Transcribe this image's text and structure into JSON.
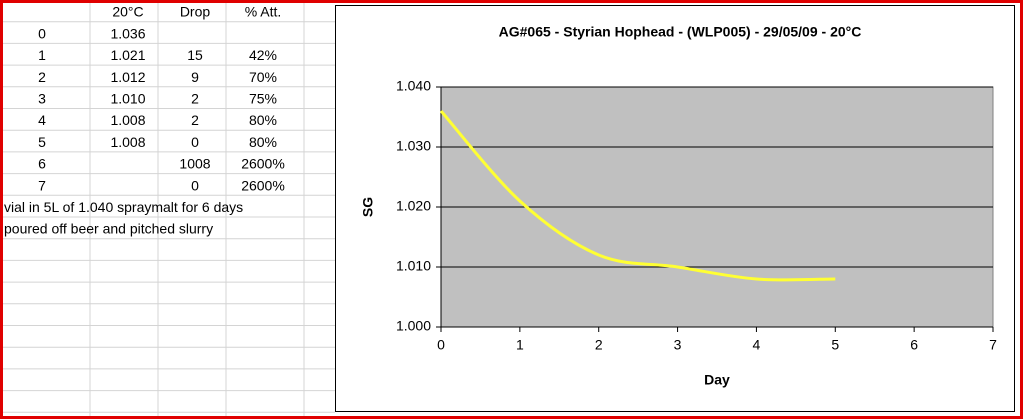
{
  "sheet": {
    "rows": [
      {
        "sg": "20°C",
        "drop": "Drop",
        "att": "% Att."
      },
      {
        "day": "0",
        "sg": "1.036"
      },
      {
        "day": "1",
        "sg": "1.021",
        "drop": "15",
        "att": "42%"
      },
      {
        "day": "2",
        "sg": "1.012",
        "drop": "9",
        "att": "70%"
      },
      {
        "day": "3",
        "sg": "1.010",
        "drop": "2",
        "att": "75%"
      },
      {
        "day": "4",
        "sg": "1.008",
        "drop": "2",
        "att": "80%"
      },
      {
        "day": "5",
        "sg": "1.008",
        "drop": "0",
        "att": "80%"
      },
      {
        "day": "6",
        "drop": "1008",
        "att": "2600%"
      },
      {
        "day": "7",
        "drop": "0",
        "att": "2600%"
      },
      {
        "note": "vial in 5L of 1.040 spraymalt for 6 days"
      },
      {
        "note": "poured off beer and pitched slurry"
      }
    ]
  },
  "chart_data": {
    "type": "line",
    "title": "AG#065 - Styrian Hophead - (WLP005) - 29/05/09 - 20°C",
    "x_label": "Day",
    "y_label": "SG",
    "series": [
      {
        "name": "SG",
        "color": "#ffff33",
        "x": [
          0,
          1,
          2,
          3,
          4,
          5
        ],
        "values": [
          1.036,
          1.021,
          1.012,
          1.01,
          1.008,
          1.008
        ]
      }
    ],
    "xlim": [
      0,
      7
    ],
    "xticks": [
      0,
      1,
      2,
      3,
      4,
      5,
      6,
      7
    ],
    "ylim": [
      1.0,
      1.04
    ],
    "yticks": [
      {
        "value": 1.0,
        "label": "1.000"
      },
      {
        "value": 1.01,
        "label": "1.010"
      },
      {
        "value": 1.02,
        "label": "1.020"
      },
      {
        "value": 1.03,
        "label": "1.030"
      },
      {
        "value": 1.04,
        "label": "1.040"
      }
    ],
    "grid": true,
    "plot_background": "#c0c0c0",
    "smooth": true,
    "legend": false
  }
}
